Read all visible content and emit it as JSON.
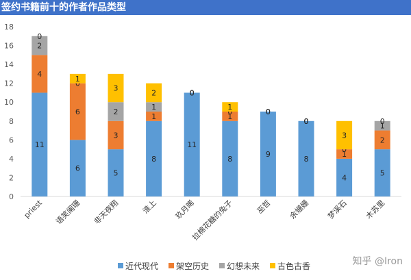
{
  "chart_data": {
    "type": "bar",
    "stacked": true,
    "title": "签约书籍前十的作者作品类型",
    "categories": [
      "priest",
      "语笑阑珊",
      "非天夜翔",
      "淮上",
      "玖月晞",
      "拉棉花糖的兔子",
      "巫哲",
      "余姗姗",
      "梦溪石",
      "木苏里"
    ],
    "series": [
      {
        "name": "近代现代",
        "values": [
          11,
          6,
          5,
          8,
          11,
          8,
          9,
          8,
          4,
          5
        ]
      },
      {
        "name": "架空历史",
        "values": [
          4,
          6,
          3,
          1,
          0,
          1,
          0,
          0,
          1,
          2
        ]
      },
      {
        "name": "幻想未来",
        "values": [
          2,
          0,
          2,
          1,
          0,
          0,
          0,
          0,
          0,
          1
        ]
      },
      {
        "name": "古色古香",
        "values": [
          0,
          1,
          3,
          2,
          0,
          1,
          0,
          0,
          3,
          0
        ]
      }
    ],
    "y_ticks": [
      "0",
      "2",
      "4",
      "6",
      "8",
      "10",
      "12",
      "14",
      "16",
      "18"
    ],
    "ylim": [
      0,
      18
    ],
    "legend_position": "bottom",
    "grid": false,
    "colors": [
      "#5b9bd5",
      "#ed7d31",
      "#a5a5a5",
      "#ffc000"
    ]
  },
  "watermark": "知乎 @Iron"
}
